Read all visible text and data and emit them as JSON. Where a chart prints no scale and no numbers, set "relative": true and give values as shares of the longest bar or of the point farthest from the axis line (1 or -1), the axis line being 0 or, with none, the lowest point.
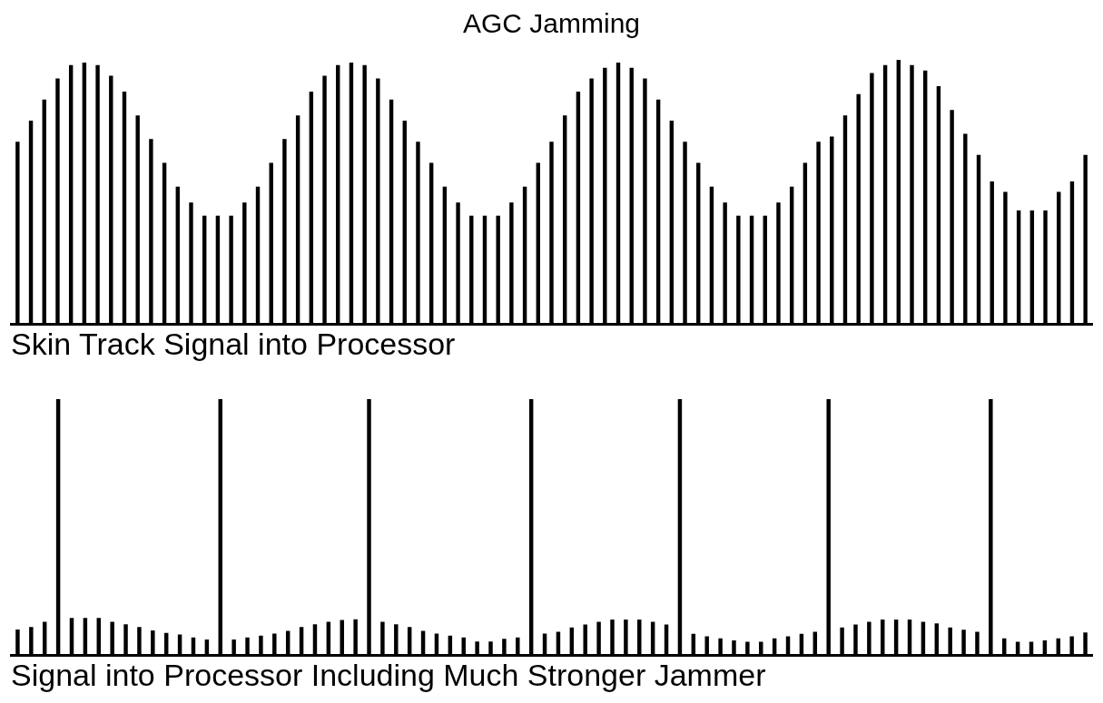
{
  "chart_data": [
    {
      "type": "bar",
      "title": "AGC Jamming",
      "xlabel": "Skin Track Signal into Processor",
      "relative": true,
      "tick_labels": false,
      "categories": [
        null,
        null,
        null,
        null,
        null,
        null,
        null,
        null,
        null,
        null,
        null,
        null,
        null,
        null,
        null,
        null,
        null,
        null,
        null,
        null,
        null,
        null,
        null,
        null,
        null,
        null,
        null,
        null,
        null,
        null,
        null,
        null,
        null,
        null,
        null,
        null,
        null,
        null,
        null,
        null,
        null,
        null,
        null,
        null,
        null,
        null,
        null,
        null,
        null,
        null,
        null,
        null,
        null,
        null,
        null,
        null,
        null,
        null,
        null,
        null,
        null,
        null,
        null,
        null,
        null,
        null,
        null,
        null,
        null,
        null,
        null,
        null,
        null,
        null,
        null,
        null,
        null,
        null,
        null,
        null,
        null
      ],
      "series": [
        {
          "color": "#000000",
          "values": [
            0.69,
            0.77,
            0.85,
            0.93,
            0.98,
            0.99,
            0.98,
            0.94,
            0.88,
            0.79,
            0.7,
            0.61,
            0.52,
            0.46,
            0.41,
            0.41,
            0.41,
            0.46,
            0.52,
            0.61,
            0.7,
            0.79,
            0.88,
            0.94,
            0.98,
            0.99,
            0.98,
            0.93,
            0.85,
            0.77,
            0.69,
            0.61,
            0.52,
            0.46,
            0.41,
            0.41,
            0.41,
            0.46,
            0.52,
            0.61,
            0.69,
            0.79,
            0.88,
            0.93,
            0.97,
            0.99,
            0.97,
            0.93,
            0.85,
            0.77,
            0.69,
            0.61,
            0.52,
            0.46,
            0.41,
            0.41,
            0.41,
            0.46,
            0.52,
            0.61,
            0.69,
            0.71,
            0.79,
            0.87,
            0.95,
            0.98,
            1,
            0.98,
            0.96,
            0.9,
            0.81,
            0.72,
            0.64,
            0.54,
            0.5,
            0.43,
            0.43,
            0.43,
            0.5,
            0.54,
            0.64
          ]
        }
      ]
    },
    {
      "type": "bar",
      "xlabel": "Signal into Processor Including Much Stronger Jammer",
      "relative": true,
      "tick_labels": false,
      "categories": [
        null,
        null,
        null,
        null,
        null,
        null,
        null,
        null,
        null,
        null,
        null,
        null,
        null,
        null,
        null,
        null,
        null,
        null,
        null,
        null,
        null,
        null,
        null,
        null,
        null,
        null,
        null,
        null,
        null,
        null,
        null,
        null,
        null,
        null,
        null,
        null,
        null,
        null,
        null,
        null,
        null,
        null,
        null,
        null,
        null,
        null,
        null,
        null,
        null,
        null,
        null,
        null,
        null,
        null,
        null,
        null,
        null,
        null,
        null,
        null,
        null,
        null,
        null,
        null,
        null,
        null,
        null,
        null,
        null,
        null,
        null,
        null,
        null,
        null,
        null,
        null,
        null,
        null,
        null,
        null
      ],
      "series": [
        {
          "color": "#000000",
          "values": [
            0.1,
            0.11,
            0.13,
            1,
            0.145,
            0.145,
            0.145,
            0.13,
            0.12,
            0.11,
            0.096,
            0.087,
            0.08,
            0.069,
            0.061,
            1,
            0.061,
            0.069,
            0.076,
            0.084,
            0.095,
            0.11,
            0.12,
            0.13,
            0.137,
            0.14,
            1,
            0.13,
            0.12,
            0.11,
            0.095,
            0.084,
            0.076,
            0.069,
            0.053,
            0.053,
            0.064,
            0.069,
            1,
            0.084,
            0.091,
            0.108,
            0.119,
            0.13,
            0.139,
            0.139,
            0.139,
            0.13,
            0.119,
            1,
            0.083,
            0.073,
            0.065,
            0.057,
            0.052,
            0.052,
            0.065,
            0.073,
            0.083,
            0.091,
            1,
            0.108,
            0.119,
            0.13,
            0.139,
            0.139,
            0.139,
            0.13,
            0.124,
            0.108,
            0.099,
            0.091,
            1,
            0.065,
            0.052,
            0.052,
            0.057,
            0.065,
            0.073,
            0.088
          ]
        }
      ]
    }
  ]
}
